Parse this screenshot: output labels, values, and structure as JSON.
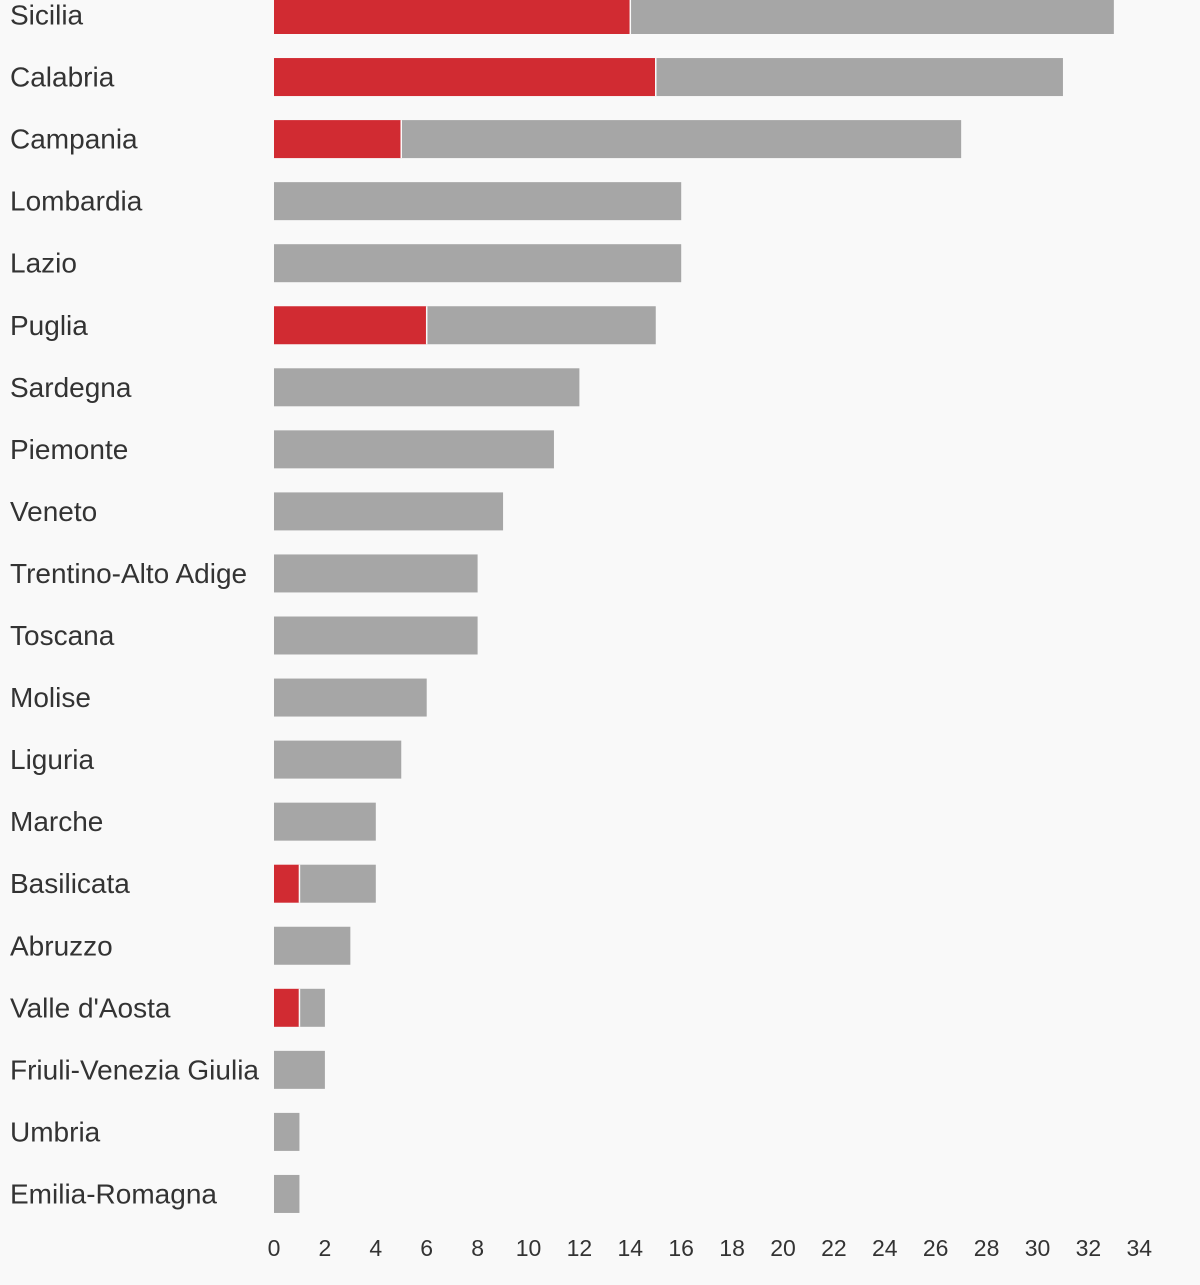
{
  "chart_data": {
    "type": "bar",
    "orientation": "horizontal",
    "stacked": true,
    "title": "",
    "xlabel": "",
    "ylabel": "",
    "xlim": [
      0,
      34
    ],
    "x_ticks": [
      0,
      2,
      4,
      6,
      8,
      10,
      12,
      14,
      16,
      18,
      20,
      22,
      24,
      26,
      28,
      30,
      32,
      34
    ],
    "grid": false,
    "legend": "none",
    "categories": [
      "Sicilia",
      "Calabria",
      "Campania",
      "Lombardia",
      "Lazio",
      "Puglia",
      "Sardegna",
      "Piemonte",
      "Veneto",
      "Trentino-Alto Adige",
      "Toscana",
      "Molise",
      "Liguria",
      "Marche",
      "Basilicata",
      "Abruzzo",
      "Valle d'Aosta",
      "Friuli-Venezia Giulia",
      "Umbria",
      "Emilia-Romagna"
    ],
    "series": [
      {
        "color": "#d12b32",
        "values": [
          14,
          15,
          5,
          0,
          0,
          6,
          0,
          0,
          0,
          0,
          0,
          0,
          0,
          0,
          1,
          0,
          1,
          0,
          0,
          0
        ]
      },
      {
        "color": "#a6a6a6",
        "values": [
          19,
          16,
          22,
          16,
          16,
          9,
          12,
          11,
          9,
          8,
          8,
          6,
          5,
          4,
          3,
          3,
          1,
          2,
          1,
          1
        ]
      }
    ]
  }
}
